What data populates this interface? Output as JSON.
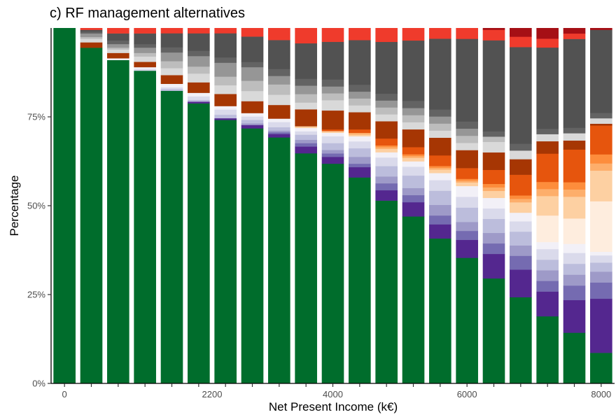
{
  "chart_data": {
    "type": "bar",
    "stacked": true,
    "normalized": true,
    "title": "c) RF management alternatives",
    "xlabel": "Net Present Income (k€)",
    "ylabel": "Percentage",
    "x_ticks": [
      {
        "value": 0,
        "label": "0"
      },
      {
        "value": 2200,
        "label": "2200"
      },
      {
        "value": 4000,
        "label": "4000"
      },
      {
        "value": 6000,
        "label": "6000"
      },
      {
        "value": 8000,
        "label": "8000"
      }
    ],
    "y_ticks": [
      {
        "value": 0,
        "label": "0%"
      },
      {
        "value": 25,
        "label": "25%"
      },
      {
        "value": 50,
        "label": "50%"
      },
      {
        "value": 75,
        "label": "75%"
      }
    ],
    "xlim": [
      -200,
      8200
    ],
    "ylim": [
      0,
      100
    ],
    "grid": false,
    "legend": "none",
    "bar_width": 330,
    "x": [
      0,
      400,
      800,
      1200,
      1600,
      2000,
      2400,
      2800,
      3200,
      3600,
      4000,
      4400,
      4800,
      5200,
      5600,
      6000,
      6400,
      6800,
      7200,
      7600,
      8000
    ],
    "series": [
      {
        "color": "#006d2c",
        "values": [
          100,
          94,
          91,
          88,
          84,
          80,
          76,
          75,
          72,
          68,
          64,
          60,
          53,
          47,
          41,
          35,
          30,
          25,
          19,
          14,
          8.5
        ]
      },
      {
        "color": "#54278f",
        "values": [
          0,
          0,
          0,
          0,
          0,
          0.5,
          0.5,
          1,
          1,
          2,
          2,
          3,
          3,
          4,
          4,
          5,
          7,
          8,
          7,
          9,
          15
        ]
      },
      {
        "color": "#756bb1",
        "values": [
          0,
          0,
          0,
          0,
          0,
          0,
          0,
          0,
          0.5,
          1,
          1,
          1,
          2,
          2,
          2.5,
          2.5,
          3,
          4,
          3,
          4,
          4.5
        ]
      },
      {
        "color": "#9e9ac8",
        "values": [
          0,
          0,
          0,
          0,
          0,
          0,
          0,
          0.5,
          0.5,
          1,
          1,
          2,
          2,
          2,
          3,
          2.5,
          3,
          3,
          3,
          3,
          3
        ]
      },
      {
        "color": "#bcbddc",
        "values": [
          0,
          0,
          0,
          0,
          0.5,
          0.5,
          1,
          1,
          1,
          1.5,
          2,
          2.5,
          3,
          3.5,
          4,
          4,
          4,
          4,
          3,
          3,
          2.5
        ]
      },
      {
        "color": "#dadaeb",
        "values": [
          0,
          0,
          0,
          0.5,
          0.5,
          1,
          1.5,
          1,
          1.5,
          1,
          2,
          2,
          2.5,
          2.5,
          3,
          3,
          3,
          3,
          3,
          3,
          2
        ]
      },
      {
        "color": "#f2f0f7",
        "values": [
          0,
          0,
          0.5,
          0.5,
          1,
          1,
          1,
          1,
          1,
          1,
          1,
          1.5,
          1.5,
          1.5,
          2,
          3,
          3,
          2.5,
          2,
          2.5,
          1
        ]
      },
      {
        "color": "#feedde",
        "values": [
          0,
          0,
          0,
          0,
          0,
          0,
          0,
          0,
          0,
          0,
          0,
          0,
          0,
          0,
          0,
          0,
          0,
          0,
          7.5,
          7,
          14
        ]
      },
      {
        "color": "#fdd0a2",
        "values": [
          0,
          0,
          0,
          0,
          0,
          0,
          0,
          0,
          0,
          0.5,
          0.5,
          0.5,
          1,
          1,
          1,
          1,
          2,
          3,
          5.5,
          6,
          8.5
        ]
      },
      {
        "color": "#fdae6b",
        "values": [
          0,
          0,
          0,
          0,
          0,
          0,
          0,
          0,
          0,
          0,
          0,
          0.5,
          0.5,
          0.5,
          0.5,
          0.5,
          1,
          1,
          2,
          2,
          2
        ]
      },
      {
        "color": "#fd8d3c",
        "values": [
          0,
          0,
          0,
          0,
          0,
          0,
          0,
          0,
          0,
          0,
          0,
          0,
          0.5,
          0.5,
          0.5,
          0.5,
          1,
          1,
          2,
          2,
          2.5
        ]
      },
      {
        "color": "#e6550d",
        "values": [
          0,
          0,
          0,
          0,
          0,
          0,
          0,
          0,
          0,
          0,
          0.5,
          1,
          2,
          2,
          3,
          3,
          4,
          6,
          8,
          9,
          8
        ]
      },
      {
        "color": "#a63603",
        "values": [
          0,
          1.5,
          1.5,
          1.5,
          2.5,
          3,
          3.5,
          3.5,
          4,
          5,
          5.5,
          5,
          5,
          5,
          5,
          5,
          5,
          4.5,
          3.5,
          2.5,
          0.5
        ]
      },
      {
        "color": "#d9d9d9",
        "values": [
          0.0,
          1.0,
          1.0,
          1.5,
          2.0,
          2.5,
          2.5,
          3.0,
          3.0,
          2.0,
          3.0,
          2.0,
          2.0,
          2.0,
          2.0,
          2.0,
          3.0,
          2.5,
          2.0,
          2.0,
          1.5
        ]
      },
      {
        "color": "#bdbdbd",
        "values": [
          0.0,
          0.5,
          0.5,
          1.0,
          2.0,
          2.0,
          2.5,
          3.0,
          3.0,
          2.5,
          2.0,
          2.0,
          2.0,
          2.0,
          2.0,
          2.0,
          1.5,
          0.0,
          0.0,
          0.0,
          0.0
        ]
      },
      {
        "color": "#969696",
        "values": [
          0.0,
          1.0,
          1.0,
          1.5,
          2.5,
          3.0,
          4.0,
          4.0,
          2.5,
          2.5,
          2.0,
          2.0,
          2.0,
          2.0,
          2.0,
          2.0,
          0.0,
          0.0,
          0.0,
          0.0,
          0.0
        ]
      },
      {
        "color": "#636363",
        "values": [
          0.0,
          0.5,
          1.0,
          1.0,
          1.5,
          1.5,
          1.5,
          1.5,
          2.0,
          2.0,
          2.0,
          2.0,
          2.0,
          2.0,
          2.0,
          2.0,
          1.5,
          2.0,
          1.5,
          1.5,
          1.5
        ]
      },
      {
        "color": "#525252",
        "values": [
          0.0,
          0.5,
          2.0,
          3.0,
          4.0,
          5.0,
          7.0,
          7.5,
          8.5,
          10.5,
          11.0,
          13.0,
          15.0,
          17.0,
          20.0,
          23.0,
          26.0,
          28.0,
          23.0,
          24.5,
          23.0
        ]
      },
      {
        "color": "#ef3b2c",
        "values": [
          0,
          0.5,
          1.5,
          1.5,
          1.5,
          1.5,
          1.5,
          2.5,
          3.5,
          4.5,
          4.0,
          3.5,
          4.0,
          3.5,
          3.0,
          3.0,
          3.0,
          3.0,
          2.5,
          1.5,
          0.0
        ]
      },
      {
        "color": "#a50f15",
        "values": [
          0,
          0,
          0,
          0,
          0,
          0,
          0,
          0,
          0,
          0,
          0,
          0,
          0,
          0,
          0,
          0,
          0.5,
          2.5,
          3.0,
          1.5,
          0.5
        ]
      }
    ]
  }
}
